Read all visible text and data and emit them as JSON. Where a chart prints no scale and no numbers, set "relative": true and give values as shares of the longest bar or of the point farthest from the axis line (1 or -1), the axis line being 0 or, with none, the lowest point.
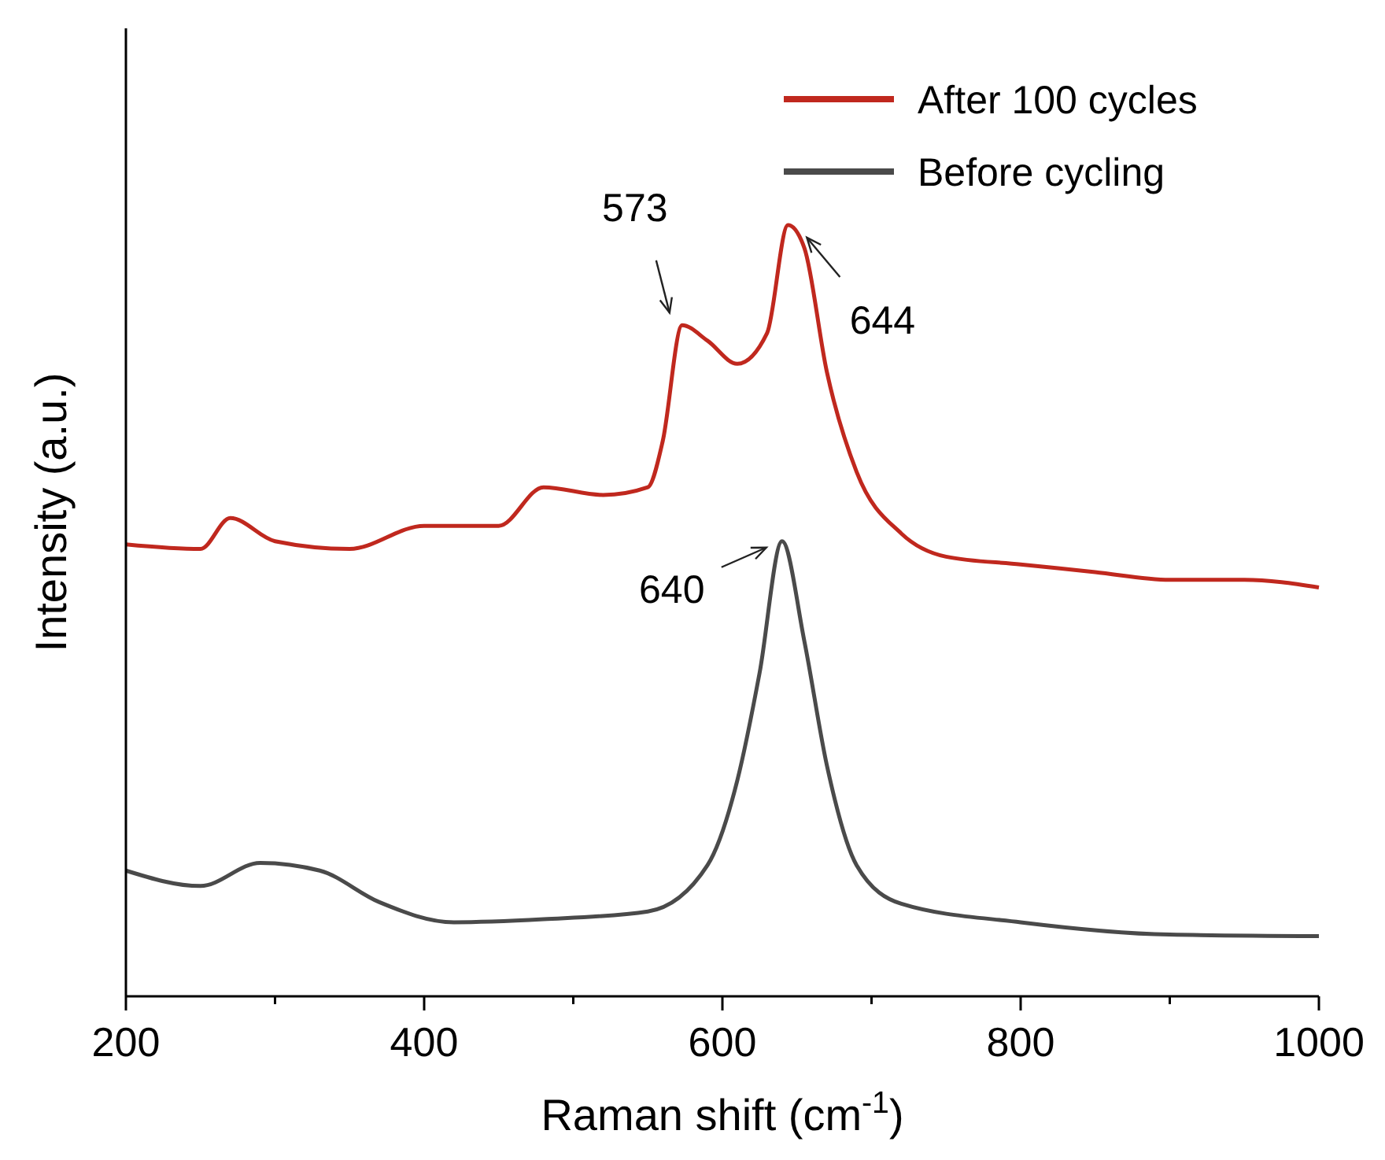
{
  "chart_data": {
    "type": "line",
    "relative": true,
    "xlabel": "Raman shift (cm$^{-1}$)",
    "ylabel": "Intensity (a.u.)",
    "xlim": [
      200,
      1000
    ],
    "xticks": [
      200,
      {
        "value": 300,
        "label": null
      },
      400,
      {
        "value": 500,
        "label": null
      },
      600,
      {
        "value": 700,
        "label": null
      },
      800,
      {
        "value": 900,
        "label": null
      },
      1000
    ],
    "legend": "top right",
    "grid": false,
    "marker": "none",
    "line_style": "solid",
    "tick_labels": "x",
    "series": [
      {
        "name": "After 100 cycles",
        "color": "#c0281e",
        "x": [
          200,
          250,
          270,
          300,
          350,
          400,
          450,
          480,
          520,
          550,
          560,
          573,
          590,
          610,
          630,
          644,
          655,
          670,
          690,
          720,
          750,
          800,
          850,
          900,
          950,
          1000
        ],
        "values": [
          0.586,
          0.58,
          0.62,
          0.59,
          0.58,
          0.61,
          0.61,
          0.66,
          0.65,
          0.66,
          0.72,
          0.87,
          0.85,
          0.82,
          0.86,
          1.0,
          0.97,
          0.81,
          0.68,
          0.6,
          0.57,
          0.56,
          0.55,
          0.54,
          0.54,
          0.53
        ]
      },
      {
        "name": "Before cycling",
        "color": "#4a4a4a",
        "x": [
          200,
          250,
          290,
          330,
          370,
          420,
          480,
          550,
          590,
          610,
          625,
          640,
          655,
          670,
          690,
          720,
          800,
          900,
          1000
        ],
        "values": [
          0.163,
          0.143,
          0.173,
          0.163,
          0.122,
          0.096,
          0.1,
          0.11,
          0.17,
          0.28,
          0.42,
          0.59,
          0.46,
          0.3,
          0.17,
          0.12,
          0.096,
          0.08,
          0.078
        ]
      }
    ],
    "annotations": [
      {
        "text": "573",
        "x": 573,
        "y": 0.87
      },
      {
        "text": "644",
        "x": 644,
        "y": 1.0
      },
      {
        "text": "640",
        "x": 640,
        "y": 0.59
      }
    ]
  }
}
